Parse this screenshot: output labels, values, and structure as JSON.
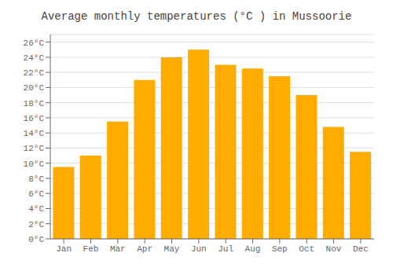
{
  "chart_data": {
    "type": "bar",
    "title": "Average monthly temperatures (°C ) in Mussoorie",
    "categories": [
      "Jan",
      "Feb",
      "Mar",
      "Apr",
      "May",
      "Jun",
      "Jul",
      "Aug",
      "Sep",
      "Oct",
      "Nov",
      "Dec"
    ],
    "values": [
      9.5,
      11.0,
      15.5,
      21.0,
      24.0,
      25.0,
      23.0,
      22.5,
      21.5,
      19.0,
      14.8,
      11.5
    ],
    "color": "#FFAB00",
    "ylim": [
      0,
      27
    ],
    "yticks": [
      {
        "value": 0,
        "label": "0°C"
      },
      {
        "value": 2,
        "label": "2°C"
      },
      {
        "value": 4,
        "label": "4°C"
      },
      {
        "value": 6,
        "label": "6°C"
      },
      {
        "value": 8,
        "label": "8°C"
      },
      {
        "value": 10,
        "label": "10°C"
      },
      {
        "value": 12,
        "label": "12°C"
      },
      {
        "value": 14,
        "label": "14°C"
      },
      {
        "value": 16,
        "label": "16°C"
      },
      {
        "value": 18,
        "label": "18°C"
      },
      {
        "value": 20,
        "label": "20°C"
      },
      {
        "value": 22,
        "label": "22°C"
      },
      {
        "value": 24,
        "label": "24°C"
      },
      {
        "value": 26,
        "label": "26°C"
      }
    ],
    "grid": true
  }
}
